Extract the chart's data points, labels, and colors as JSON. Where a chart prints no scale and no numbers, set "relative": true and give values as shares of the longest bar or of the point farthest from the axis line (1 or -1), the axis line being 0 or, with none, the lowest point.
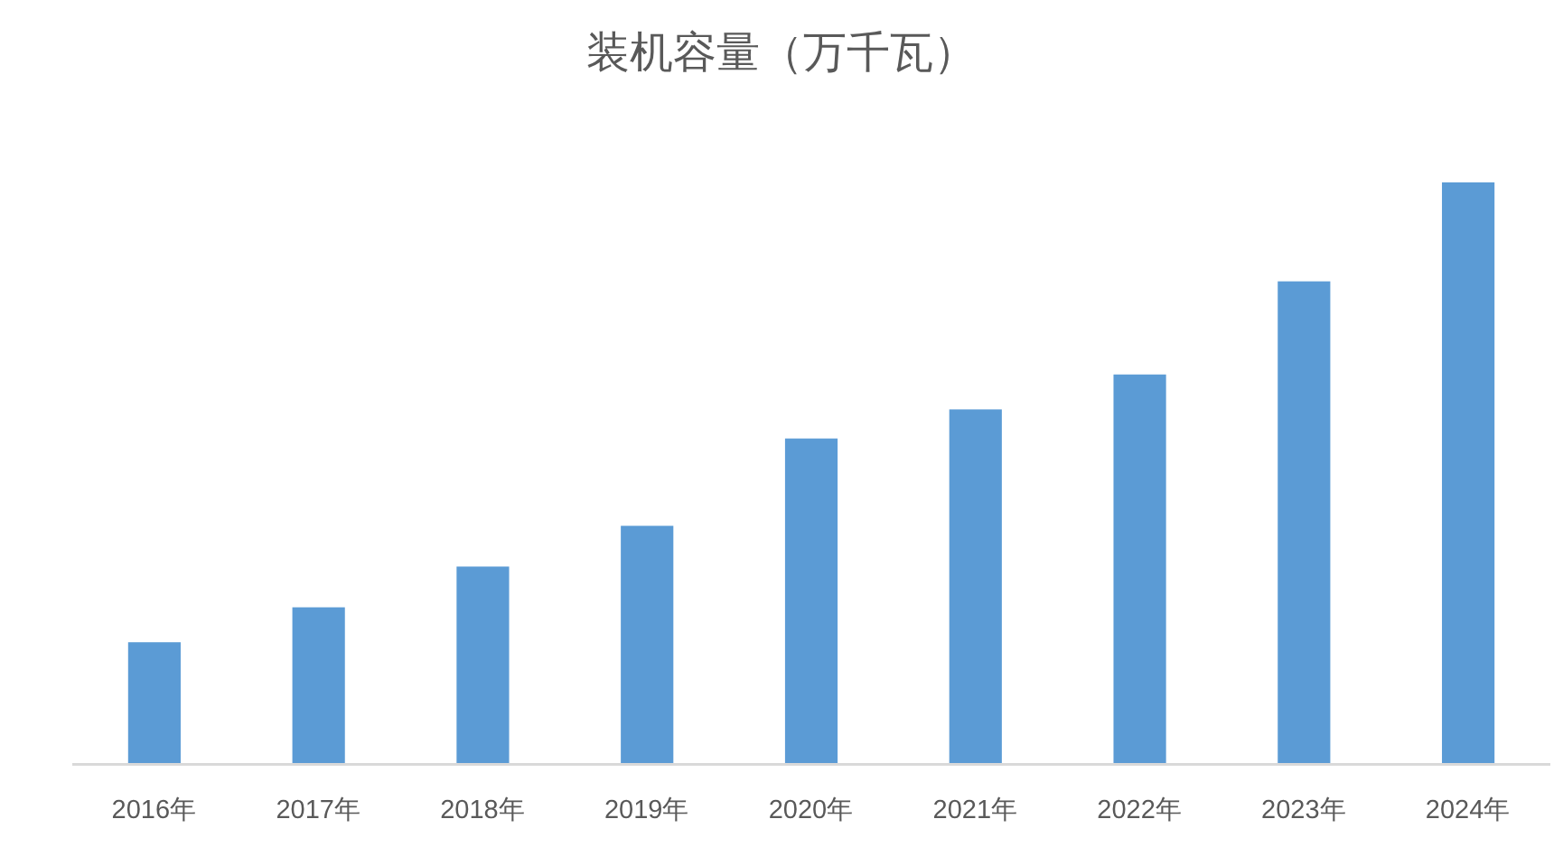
{
  "chart_data": {
    "type": "bar",
    "title": "装机容量（万千瓦）",
    "categories": [
      "2016年",
      "2017年",
      "2018年",
      "2019年",
      "2020年",
      "2021年",
      "2022年",
      "2023年",
      "2024年"
    ],
    "values": [
      0.21,
      0.27,
      0.34,
      0.41,
      0.56,
      0.61,
      0.67,
      0.83,
      1
    ],
    "color": "#5b9bd5",
    "relative": true
  }
}
